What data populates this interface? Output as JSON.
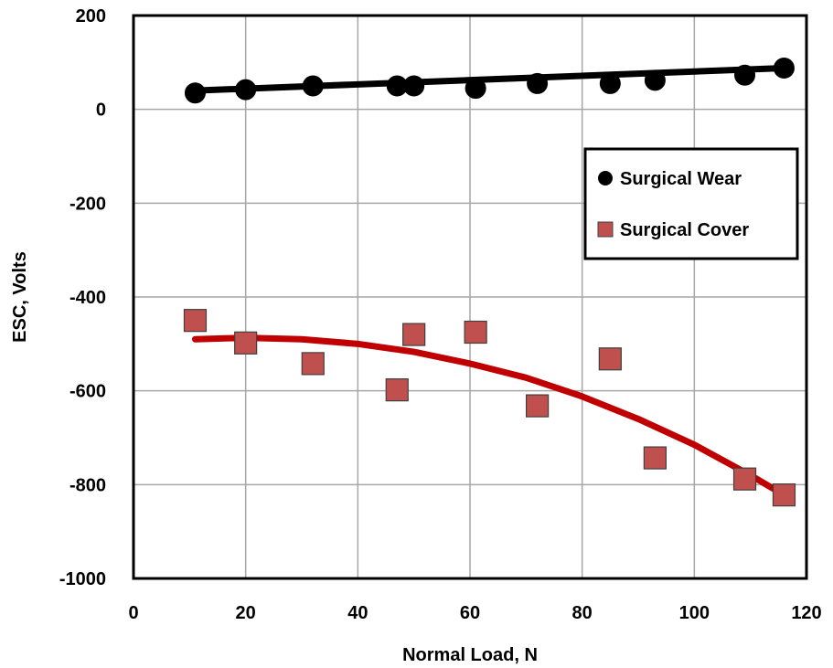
{
  "chart_data": {
    "type": "scatter",
    "xlabel": "Normal Load, N",
    "ylabel": "ESC, Volts",
    "xlim": [
      0,
      120
    ],
    "ylim": [
      -1000,
      200
    ],
    "xticks": [
      0,
      20,
      40,
      60,
      80,
      100,
      120
    ],
    "yticks": [
      200,
      0,
      -200,
      -400,
      -600,
      -800,
      -1000
    ],
    "xtick_labels": [
      "0",
      "20",
      "40",
      "60",
      "80",
      "100",
      "120"
    ],
    "ytick_labels": [
      "200",
      "0",
      "-200",
      "-400",
      "-600",
      "-800",
      "-1000"
    ],
    "grid": true,
    "legend_position": "right",
    "series": [
      {
        "name": "Surgical Wear",
        "marker": "circle",
        "color": "#000000",
        "x": [
          11,
          20,
          32,
          47,
          50,
          61,
          72,
          85,
          93,
          109,
          116
        ],
        "y": [
          35,
          42,
          50,
          50,
          50,
          45,
          55,
          55,
          62,
          73,
          88
        ],
        "trendline": {
          "type": "linear",
          "color": "#000000",
          "x": [
            11,
            116
          ],
          "y": [
            40,
            88
          ]
        }
      },
      {
        "name": "Surgical Cover",
        "marker": "square",
        "color": "#c0504d",
        "x": [
          11,
          20,
          32,
          47,
          50,
          61,
          72,
          85,
          93,
          109,
          116
        ],
        "y": [
          -450,
          -498,
          -542,
          -598,
          -480,
          -475,
          -632,
          -532,
          -743,
          -788,
          -822
        ],
        "trendline": {
          "type": "polynomial",
          "color": "#c00000",
          "x": [
            11,
            20,
            30,
            40,
            50,
            60,
            70,
            80,
            90,
            100,
            110,
            116
          ],
          "y": [
            -490,
            -487,
            -490,
            -500,
            -517,
            -542,
            -572,
            -612,
            -660,
            -715,
            -780,
            -822
          ]
        }
      }
    ]
  }
}
